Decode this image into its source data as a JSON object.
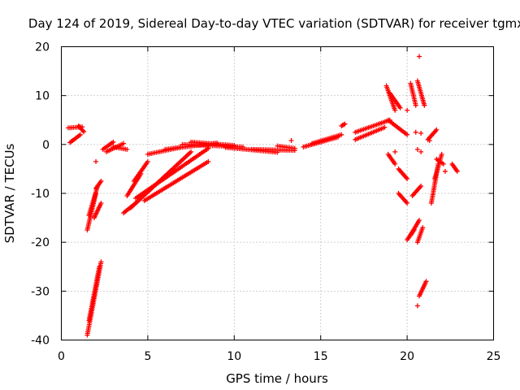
{
  "chart_data": {
    "type": "scatter",
    "title": "Day 124 of 2019, Sidereal Day-to-day VTEC variation (SDTVAR) for receiver tgmx",
    "xlabel": "GPS time / hours",
    "ylabel": "SDTVAR / TECUs",
    "xlim": [
      0,
      25
    ],
    "ylim": [
      -40,
      20
    ],
    "xticks": [
      0,
      5,
      10,
      15,
      20,
      25
    ],
    "yticks": [
      -40,
      -30,
      -20,
      -10,
      0,
      10,
      20
    ],
    "grid": true,
    "marker": "plus",
    "color": "#ff0000",
    "segments": [
      {
        "x0": 0.4,
        "x1": 1.2,
        "y0": 3.4,
        "y1": 3.6
      },
      {
        "x0": 0.5,
        "x1": 1.1,
        "y0": 0.4,
        "y1": 2.0
      },
      {
        "x0": 1.0,
        "x1": 1.3,
        "y0": 3.8,
        "y1": 2.6
      },
      {
        "x0": 1.5,
        "x1": 2.0,
        "y0": -17.5,
        "y1": -10.0
      },
      {
        "x0": 1.6,
        "x1": 2.1,
        "y0": -14.5,
        "y1": -8.5
      },
      {
        "x0": 1.9,
        "x1": 2.3,
        "y0": -15.0,
        "y1": -12.0
      },
      {
        "x0": 2.0,
        "x1": 2.3,
        "y0": -9.0,
        "y1": -7.5
      },
      {
        "x0": 1.5,
        "x1": 2.3,
        "y0": -39.0,
        "y1": -24.0
      },
      {
        "x0": 1.6,
        "x1": 2.2,
        "y0": -36.0,
        "y1": -25.0
      },
      {
        "x0": 2.4,
        "x1": 3.0,
        "y0": -1.0,
        "y1": 0.5
      },
      {
        "x0": 3.0,
        "x1": 3.8,
        "y0": -0.5,
        "y1": -1.0
      },
      {
        "x0": 2.6,
        "x1": 3.6,
        "y0": -1.5,
        "y1": 0.2
      },
      {
        "x0": 3.6,
        "x1": 4.3,
        "y0": -14.0,
        "y1": -12.0
      },
      {
        "x0": 3.8,
        "x1": 4.6,
        "y0": -10.5,
        "y1": -6.0
      },
      {
        "x0": 4.2,
        "x1": 5.0,
        "y0": -7.5,
        "y1": -3.5
      },
      {
        "x0": 4.0,
        "x1": 7.5,
        "y0": -13.0,
        "y1": -1.5
      },
      {
        "x0": 4.3,
        "x1": 8.5,
        "y0": -11.0,
        "y1": -0.8
      },
      {
        "x0": 4.8,
        "x1": 8.5,
        "y0": -11.5,
        "y1": -3.5
      },
      {
        "x0": 5.0,
        "x1": 7.0,
        "y0": -2.0,
        "y1": -0.5
      },
      {
        "x0": 6.0,
        "x1": 9.0,
        "y0": -1.0,
        "y1": 0.3
      },
      {
        "x0": 7.0,
        "x1": 10.5,
        "y0": 0.0,
        "y1": -0.5
      },
      {
        "x0": 7.5,
        "x1": 10.0,
        "y0": 0.5,
        "y1": -0.2
      },
      {
        "x0": 9.5,
        "x1": 12.5,
        "y0": -0.6,
        "y1": -1.6
      },
      {
        "x0": 11.0,
        "x1": 13.5,
        "y0": -1.0,
        "y1": -1.2
      },
      {
        "x0": 12.5,
        "x1": 13.5,
        "y0": -0.3,
        "y1": -0.8
      },
      {
        "x0": 14.0,
        "x1": 16.0,
        "y0": -0.5,
        "y1": 1.5
      },
      {
        "x0": 14.5,
        "x1": 16.2,
        "y0": 0.2,
        "y1": 2.0
      },
      {
        "x0": 16.2,
        "x1": 16.4,
        "y0": 3.8,
        "y1": 4.2
      },
      {
        "x0": 17.0,
        "x1": 19.0,
        "y0": 2.5,
        "y1": 5.0
      },
      {
        "x0": 17.0,
        "x1": 18.7,
        "y0": 1.0,
        "y1": 3.5
      },
      {
        "x0": 18.8,
        "x1": 19.3,
        "y0": 12.0,
        "y1": 7.0
      },
      {
        "x0": 18.9,
        "x1": 20.0,
        "y0": 5.0,
        "y1": 2.0
      },
      {
        "x0": 19.0,
        "x1": 19.6,
        "y0": 10.5,
        "y1": 7.5
      },
      {
        "x0": 18.9,
        "x1": 19.3,
        "y0": -2.0,
        "y1": -4.0
      },
      {
        "x0": 19.5,
        "x1": 20.0,
        "y0": -10.0,
        "y1": -12.0
      },
      {
        "x0": 19.5,
        "x1": 20.0,
        "y0": -5.0,
        "y1": -7.0
      },
      {
        "x0": 20.0,
        "x1": 20.4,
        "y0": -19.5,
        "y1": -17.5
      },
      {
        "x0": 20.2,
        "x1": 20.7,
        "y0": -18.5,
        "y1": -15.5
      },
      {
        "x0": 20.2,
        "x1": 20.5,
        "y0": 12.5,
        "y1": 8.0
      },
      {
        "x0": 20.6,
        "x1": 21.0,
        "y0": 13.0,
        "y1": 8.0
      },
      {
        "x0": 20.3,
        "x1": 20.8,
        "y0": -10.5,
        "y1": -8.5
      },
      {
        "x0": 20.6,
        "x1": 20.9,
        "y0": -20.0,
        "y1": -17.0
      },
      {
        "x0": 20.7,
        "x1": 21.1,
        "y0": -31.0,
        "y1": -28.0
      },
      {
        "x0": 21.2,
        "x1": 21.7,
        "y0": 1.0,
        "y1": 3.0
      },
      {
        "x0": 21.4,
        "x1": 21.8,
        "y0": -12.0,
        "y1": -4.0
      },
      {
        "x0": 21.6,
        "x1": 22.0,
        "y0": -7.0,
        "y1": -2.0
      },
      {
        "x0": 21.7,
        "x1": 22.1,
        "y0": -3.0,
        "y1": -4.0
      },
      {
        "x0": 22.6,
        "x1": 22.9,
        "y0": -4.0,
        "y1": -5.5
      }
    ],
    "points": [
      {
        "x": 20.7,
        "y": 18.0
      },
      {
        "x": 20.5,
        "y": 2.5
      },
      {
        "x": 20.8,
        "y": 2.3
      },
      {
        "x": 20.6,
        "y": -1.0
      },
      {
        "x": 20.8,
        "y": -1.5
      },
      {
        "x": 21.3,
        "y": 0.8
      },
      {
        "x": 20.6,
        "y": -33.0
      },
      {
        "x": 2.0,
        "y": -3.5
      },
      {
        "x": 20.0,
        "y": 7.0
      },
      {
        "x": 22.2,
        "y": -5.5
      },
      {
        "x": 13.3,
        "y": 0.8
      },
      {
        "x": 19.3,
        "y": -1.5
      }
    ]
  }
}
